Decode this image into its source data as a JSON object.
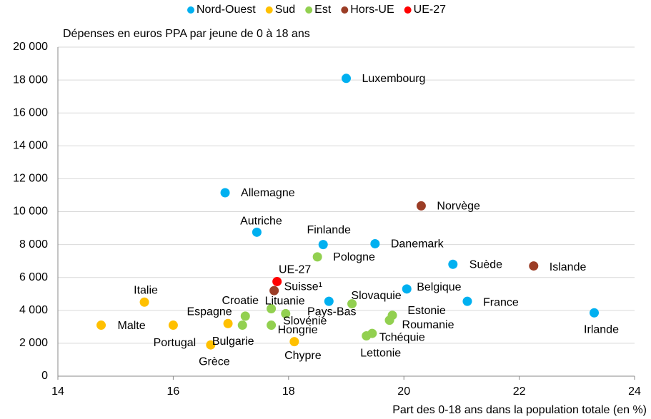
{
  "chart_data": {
    "type": "scatter",
    "ylabel": "Dépenses en euros PPA par jeune de 0 à 18 ans",
    "xlabel": "Part des 0-18 ans dans la population totale (en %)",
    "xlim": [
      14,
      24
    ],
    "xticks": [
      14,
      16,
      18,
      20,
      22,
      24
    ],
    "ylim": [
      0,
      20000
    ],
    "yticks": [
      0,
      {
        "value": 2000,
        "label": "2 000"
      },
      {
        "value": 4000,
        "label": "4 000"
      },
      {
        "value": 6000,
        "label": "6 000"
      },
      {
        "value": 8000,
        "label": "8 000"
      },
      {
        "value": 10000,
        "label": "10 000"
      },
      {
        "value": 12000,
        "label": "12 000"
      },
      {
        "value": 14000,
        "label": "14 000"
      },
      {
        "value": 16000,
        "label": "16 000"
      },
      {
        "value": 18000,
        "label": "18 000"
      },
      {
        "value": 20000,
        "label": "20 000"
      }
    ],
    "grid": true,
    "series": [
      {
        "name": "Nord-Ouest",
        "color": "#00b0f0",
        "labels": [
          "Luxembourg",
          "Allemagne",
          "Autriche",
          "Finlande",
          "Danemark",
          "Suède",
          "Belgique",
          "Pays-Bas",
          "France",
          "Irlande"
        ],
        "x": [
          19.0,
          16.9,
          17.45,
          18.6,
          19.5,
          20.85,
          20.05,
          18.7,
          21.1,
          23.3
        ],
        "values": [
          18100,
          11150,
          8750,
          8000,
          8050,
          6800,
          5300,
          4550,
          4550,
          3850
        ]
      },
      {
        "name": "Sud",
        "color": "#ffc000",
        "labels": [
          "Italie",
          "Malte",
          "Portugal",
          "Espagne",
          "Grèce",
          "Chypre"
        ],
        "x": [
          15.5,
          14.75,
          16.0,
          16.95,
          16.65,
          18.1
        ],
        "values": [
          4500,
          3100,
          3100,
          3200,
          1900,
          2100
        ]
      },
      {
        "name": "Est",
        "color": "#92d050",
        "labels": [
          "Pologne",
          "Slovaquie",
          "Croatie",
          "Bulgarie",
          "Lituanie",
          "Slovénie",
          "Hongrie",
          "Estonie",
          "Roumanie",
          "Tchéquie",
          "Lettonie"
        ],
        "x": [
          18.5,
          19.1,
          17.25,
          17.2,
          17.7,
          17.95,
          17.7,
          19.8,
          19.75,
          19.45,
          19.35
        ],
        "values": [
          7250,
          4400,
          3650,
          3100,
          4100,
          3800,
          3100,
          3700,
          3400,
          2600,
          2450
        ]
      },
      {
        "name": "Hors-UE",
        "color": "#9b3d26",
        "labels": [
          "Norvège",
          "Suisse¹",
          "Islande"
        ],
        "x": [
          20.3,
          17.75,
          22.25
        ],
        "values": [
          10350,
          5200,
          6700
        ]
      },
      {
        "name": "UE-27",
        "color": "#ff0000",
        "labels": [
          "UE-27"
        ],
        "x": [
          17.8
        ],
        "values": [
          5750
        ]
      }
    ]
  }
}
